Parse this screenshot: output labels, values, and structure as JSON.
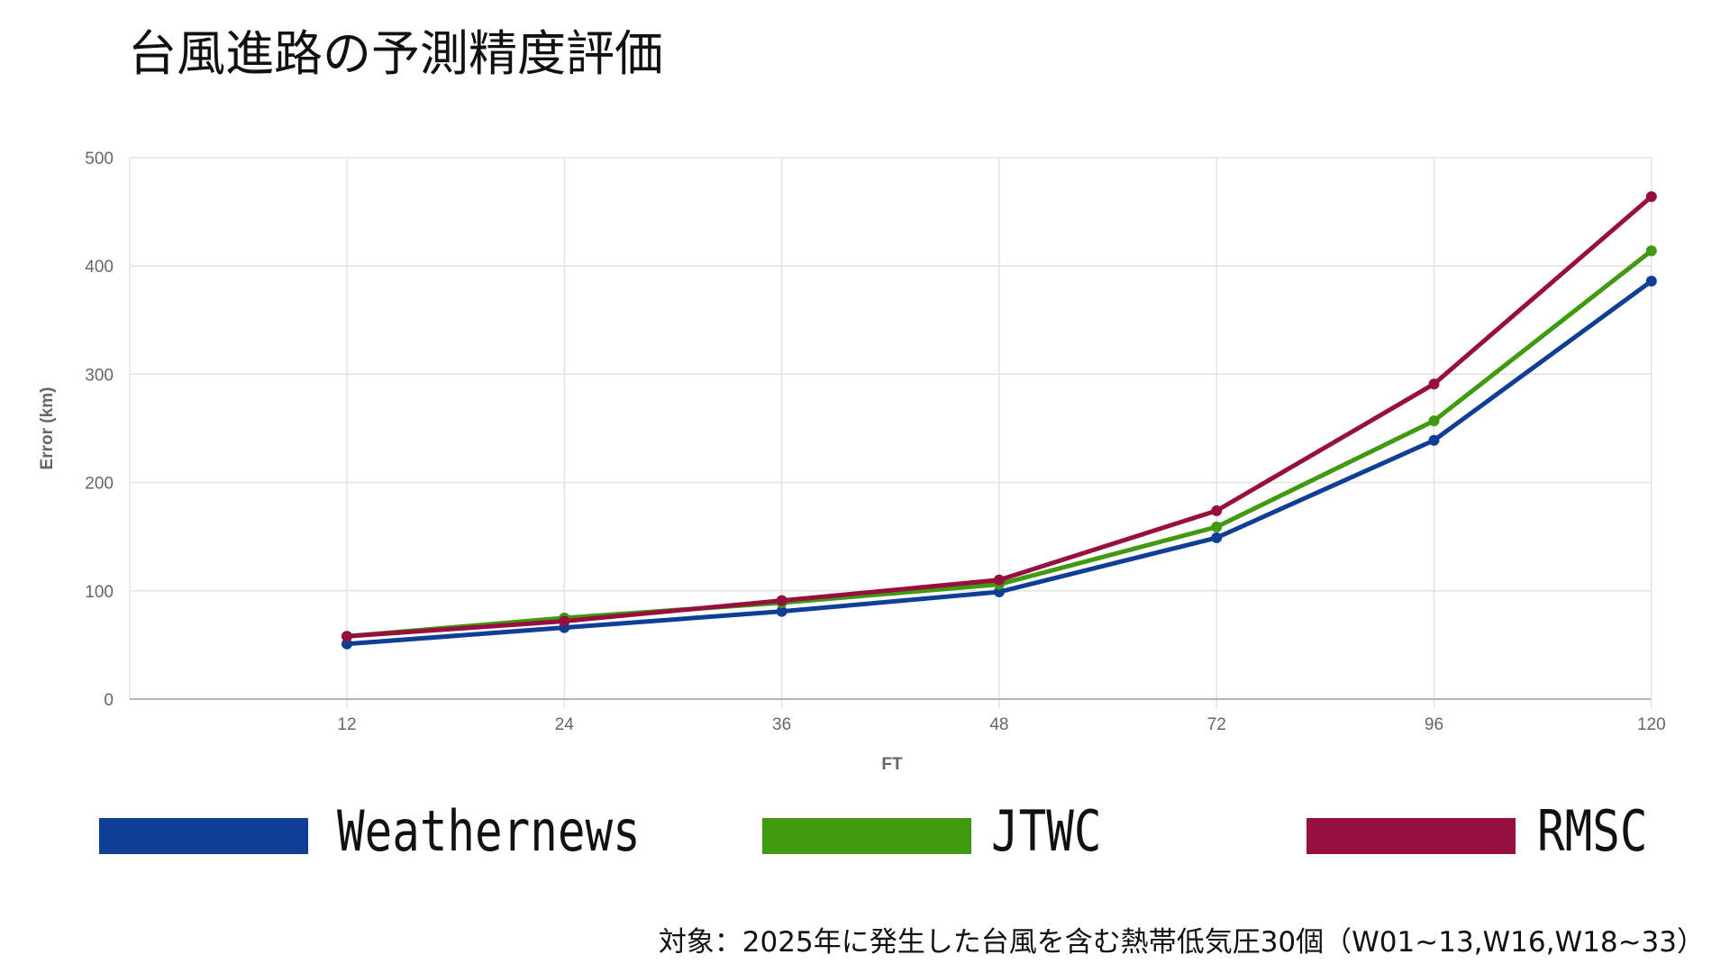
{
  "chart_data": {
    "type": "line",
    "title": "台風進路の予測精度評価",
    "xlabel": "FT",
    "ylabel": "Error (km)",
    "categories": [
      "12",
      "24",
      "36",
      "48",
      "72",
      "96",
      "120"
    ],
    "yticks": [
      "0",
      "100",
      "200",
      "300",
      "400",
      "500"
    ],
    "ylim": [
      0,
      500
    ],
    "grid": true,
    "legend_position": "bottom",
    "series": [
      {
        "name": "Weathernews",
        "color": "#0f3e96",
        "values": [
          51,
          66,
          81,
          99,
          149,
          239,
          386
        ]
      },
      {
        "name": "JTWC",
        "color": "#3f9a12",
        "values": [
          58,
          75,
          89,
          106,
          159,
          257,
          414
        ]
      },
      {
        "name": "RMSC",
        "color": "#960f3f",
        "values": [
          58,
          72,
          91,
          110,
          174,
          291,
          464
        ]
      }
    ]
  },
  "footnote": "対象：2025年に発生した台風を含む熱帯低気圧30個（W01~13,W16,W18~33）"
}
